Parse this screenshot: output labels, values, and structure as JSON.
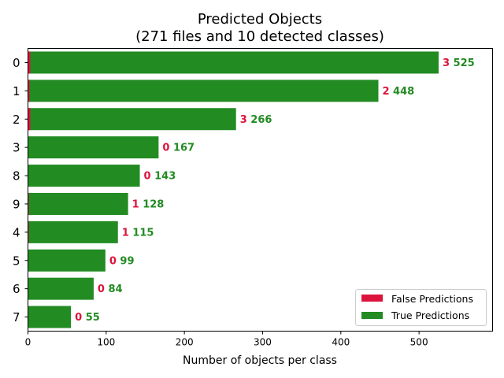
{
  "chart_data": {
    "type": "bar",
    "orientation": "horizontal",
    "stacked": true,
    "title": [
      "Predicted Objects",
      "(271 files and 10 detected classes)"
    ],
    "xlabel": "Number of objects per class",
    "ylabel": "",
    "xlim": [
      0,
      594
    ],
    "xticks": [
      0,
      100,
      200,
      300,
      400,
      500
    ],
    "categories": [
      "0",
      "1",
      "2",
      "3",
      "8",
      "9",
      "4",
      "5",
      "6",
      "7"
    ],
    "series": [
      {
        "name": "False Predictions",
        "color": "#dc143c",
        "values": [
          3,
          2,
          3,
          0,
          0,
          1,
          1,
          0,
          0,
          0
        ]
      },
      {
        "name": "True Predictions",
        "color": "#228b22",
        "values": [
          525,
          448,
          266,
          167,
          143,
          128,
          115,
          99,
          84,
          55
        ]
      }
    ],
    "legend_position": "lower-right",
    "grid": false
  }
}
